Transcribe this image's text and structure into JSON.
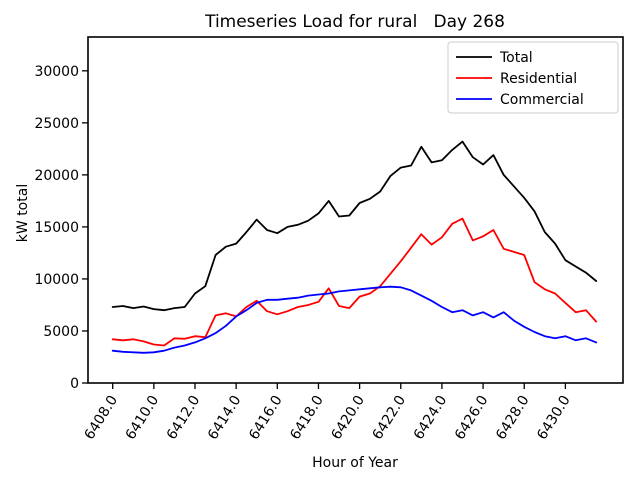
{
  "chart_data": {
    "type": "line",
    "title": "Timeseries Load for rural   Day 268",
    "xlabel": "Hour of Year",
    "ylabel": "kW total",
    "xlim": [
      6406.8,
      6432.8
    ],
    "ylim": [
      0,
      33250
    ],
    "grid": false,
    "legend_position": "upper right",
    "x": [
      6408.0,
      6408.5,
      6409.0,
      6409.5,
      6410.0,
      6410.5,
      6411.0,
      6411.5,
      6412.0,
      6412.5,
      6413.0,
      6413.5,
      6414.0,
      6414.5,
      6415.0,
      6415.5,
      6416.0,
      6416.5,
      6417.0,
      6417.5,
      6418.0,
      6418.5,
      6419.0,
      6419.5,
      6420.0,
      6420.5,
      6421.0,
      6421.5,
      6422.0,
      6422.5,
      6423.0,
      6423.5,
      6424.0,
      6424.5,
      6425.0,
      6425.5,
      6426.0,
      6426.5,
      6427.0,
      6427.5,
      6428.0,
      6428.5,
      6429.0,
      6429.5,
      6430.0,
      6430.5,
      6431.0,
      6431.5
    ],
    "xticks": [
      6408,
      6410,
      6412,
      6414,
      6416,
      6418,
      6420,
      6422,
      6424,
      6426,
      6428,
      6430
    ],
    "xtick_labels": [
      "6408.0",
      "6410.0",
      "6412.0",
      "6414.0",
      "6416.0",
      "6418.0",
      "6420.0",
      "6422.0",
      "6424.0",
      "6426.0",
      "6428.0",
      "6430.0"
    ],
    "yticks": [
      0,
      5000,
      10000,
      15000,
      20000,
      25000,
      30000
    ],
    "ytick_labels": [
      "0",
      "5000",
      "10000",
      "15000",
      "20000",
      "25000",
      "30000"
    ],
    "series": [
      {
        "name": "Total",
        "color": "#000000",
        "values": [
          7300,
          7400,
          7200,
          7350,
          7100,
          7000,
          7200,
          7300,
          8600,
          9300,
          12300,
          13100,
          13400,
          14500,
          15700,
          14700,
          14400,
          15000,
          15200,
          15600,
          16300,
          17500,
          16000,
          16100,
          17300,
          17700,
          18400,
          19900,
          20700,
          20900,
          22700,
          21200,
          21400,
          22400,
          23200,
          21700,
          21000,
          21900,
          20000,
          18900,
          17800,
          16500,
          14500,
          13400,
          11800,
          11200,
          10600,
          9800
        ]
      },
      {
        "name": "Residential",
        "color": "#ff0000",
        "values": [
          4200,
          4100,
          4200,
          4000,
          3700,
          3600,
          4300,
          4250,
          4500,
          4400,
          6500,
          6700,
          6400,
          7300,
          7900,
          6900,
          6600,
          6900,
          7300,
          7500,
          7800,
          9100,
          7400,
          7200,
          8300,
          8600,
          9300,
          10500,
          11700,
          13000,
          14300,
          13300,
          14000,
          15300,
          15800,
          13700,
          14100,
          14700,
          12900,
          12600,
          12300,
          9700,
          9000,
          8600,
          7700,
          6800,
          7000,
          5900
        ]
      },
      {
        "name": "Commercial",
        "color": "#0000ff",
        "values": [
          3100,
          3000,
          2950,
          2900,
          2950,
          3100,
          3400,
          3600,
          3900,
          4300,
          4800,
          5500,
          6400,
          7000,
          7700,
          8000,
          8000,
          8100,
          8200,
          8400,
          8500,
          8600,
          8800,
          8900,
          9000,
          9100,
          9200,
          9250,
          9200,
          8900,
          8400,
          7900,
          7300,
          6800,
          7000,
          6500,
          6800,
          6300,
          6800,
          6000,
          5400,
          4900,
          4500,
          4300,
          4500,
          4100,
          4300,
          3900
        ]
      }
    ]
  }
}
